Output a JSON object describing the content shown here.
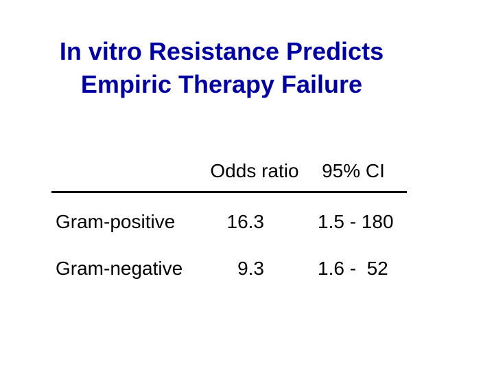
{
  "slide": {
    "title": {
      "line1": "In vitro Resistance Predicts",
      "line2": "Empiric Therapy Failure",
      "color": "#0000A1"
    },
    "table": {
      "headers": {
        "odds_ratio": "Odds ratio",
        "ci": "95% CI"
      },
      "rows": [
        {
          "label": "Gram-positive",
          "odds_ratio": "16.3",
          "ci": "1.5 - 180"
        },
        {
          "label": "Gram-negative",
          "odds_ratio": "9.3",
          "ci": "1.6 -  52"
        }
      ],
      "text_color": "#000000",
      "divider_color": "#000000"
    },
    "background_color": "#FFFFFF"
  }
}
